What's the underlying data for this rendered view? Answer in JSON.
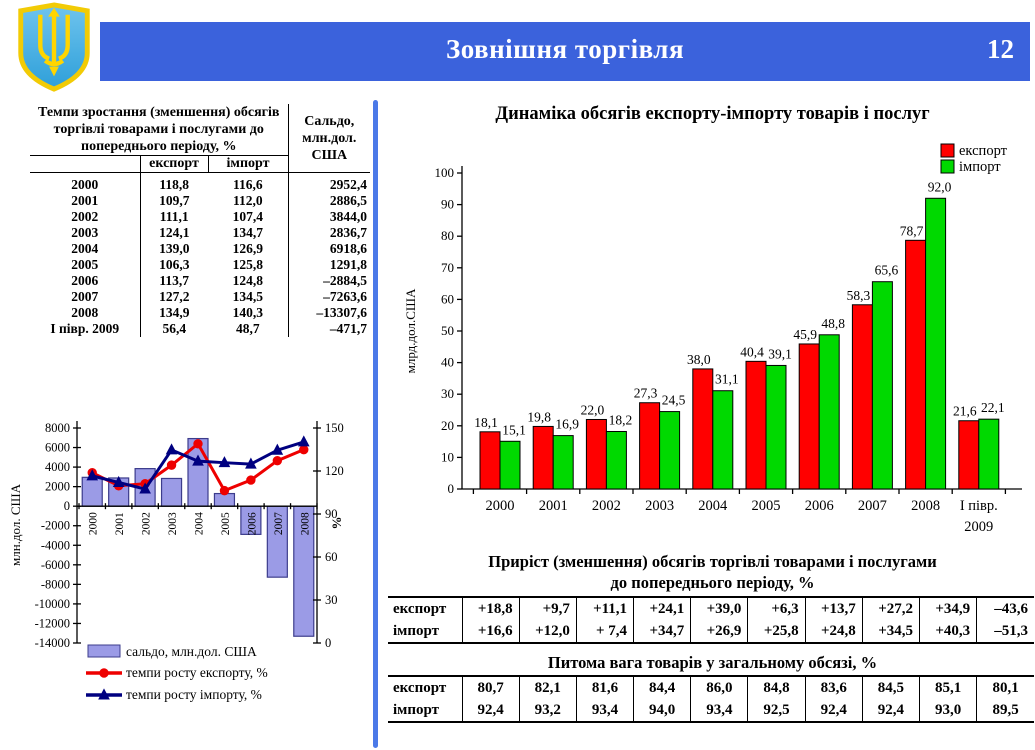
{
  "colors": {
    "header_bar": "#3B62DC",
    "divider": "#4B79E8",
    "saldo_bar_fill": "#9B9BE6",
    "saldo_bar_border": "#3C3C8C",
    "export_line": "#EE0000",
    "import_line": "#000080",
    "export_bar": "#FF0000",
    "import_bar": "#00D900"
  },
  "header": {
    "title": "Зовнішня торгівля",
    "page_number": "12",
    "emblem": "ukraine-coat-of-arms"
  },
  "growth_table": {
    "title": "Темпи зростання (зменшення) обсягів торгівлі товарами і послугами до попереднього періоду, %",
    "saldo_header": "Сальдо, млн.дол. США",
    "columns": {
      "export": "експорт",
      "import": "імпорт"
    },
    "rows": [
      {
        "period": "2000",
        "export": "118,8",
        "import": "116,6",
        "saldo": "2952,4"
      },
      {
        "period": "2001",
        "export": "109,7",
        "import": "112,0",
        "saldo": "2886,5"
      },
      {
        "period": "2002",
        "export": "111,1",
        "import": "107,4",
        "saldo": "3844,0"
      },
      {
        "period": "2003",
        "export": "124,1",
        "import": "134,7",
        "saldo": "2836,7"
      },
      {
        "period": "2004",
        "export": "139,0",
        "import": "126,9",
        "saldo": "6918,6"
      },
      {
        "period": "2005",
        "export": "106,3",
        "import": "125,8",
        "saldo": "1291,8"
      },
      {
        "period": "2006",
        "export": "113,7",
        "import": "124,8",
        "saldo": "–2884,5"
      },
      {
        "period": "2007",
        "export": "127,2",
        "import": "134,5",
        "saldo": "–7263,6"
      },
      {
        "period": "2008",
        "export": "134,9",
        "import": "140,3",
        "saldo": "–13307,6"
      },
      {
        "period": "І півр. 2009",
        "export": "56,4",
        "import": "48,7",
        "saldo": "–471,7"
      }
    ]
  },
  "chart_data": [
    {
      "id": "saldo_combo",
      "type": "bar+line",
      "categories": [
        "2000",
        "2001",
        "2002",
        "2003",
        "2004",
        "2005",
        "2006",
        "2007",
        "2008"
      ],
      "bar_series": {
        "name": "сальдо, млн.дол. США",
        "color": "#9B9BE6",
        "values": [
          2952.4,
          2886.5,
          3844.0,
          2836.7,
          6918.6,
          1291.8,
          -2884.5,
          -7263.6,
          -13307.6
        ]
      },
      "line_series": [
        {
          "name": "темпи росту експорту, %",
          "color": "#EE0000",
          "marker": "circle",
          "values": [
            118.8,
            109.7,
            111.1,
            124.1,
            139.0,
            106.3,
            113.7,
            127.2,
            134.9
          ]
        },
        {
          "name": "темпи росту імпорту, %",
          "color": "#000080",
          "marker": "triangle",
          "values": [
            116.6,
            112.0,
            107.4,
            134.7,
            126.9,
            125.8,
            124.8,
            134.5,
            140.3
          ]
        }
      ],
      "y_left": {
        "label": "млн.дол. США",
        "min": -14000,
        "max": 8000,
        "step": 2000
      },
      "y_right": {
        "label": "%",
        "min": 0,
        "max": 150,
        "step": 30
      },
      "legend_position": "bottom",
      "grid": false
    },
    {
      "id": "export_import_dynamics",
      "type": "bar",
      "title": "Динаміка обсягів експорту-імпорту товарів і послуг",
      "categories": [
        "2000",
        "2001",
        "2002",
        "2003",
        "2004",
        "2005",
        "2006",
        "2007",
        "2008",
        "І півр.\n2009"
      ],
      "series": [
        {
          "name": "експорт",
          "color": "#FF0000",
          "values": [
            18.1,
            19.8,
            22.0,
            27.3,
            38.0,
            40.4,
            45.9,
            58.3,
            78.7,
            21.6
          ],
          "labels": [
            "18,1",
            "19,8",
            "22,0",
            "27,3",
            "38,0",
            "40,4",
            "45,9",
            "58,3",
            "78,7",
            "21,6"
          ]
        },
        {
          "name": "імпорт",
          "color": "#00D900",
          "values": [
            15.1,
            16.9,
            18.2,
            24.5,
            31.1,
            39.1,
            48.8,
            65.6,
            92.0,
            22.1
          ],
          "labels": [
            "15,1",
            "16,9",
            "18,2",
            "24,5",
            "31,1",
            "39,1",
            "48,8",
            "65,6",
            "92,0",
            "22,1"
          ]
        }
      ],
      "ylabel": "млрд.дол.США",
      "ylim": [
        0,
        100
      ],
      "ystep": 10,
      "legend_position": "top-right",
      "grid": false
    }
  ],
  "growth_summary": {
    "title_line1": "Приріст (зменшення) обсягів торгівлі товарами і послугами",
    "title_line2": "до попереднього періоду, %",
    "rows": [
      {
        "label": "експорт",
        "values": [
          "+18,8",
          "+9,7",
          "+11,1",
          "+24,1",
          "+39,0",
          "+6,3",
          "+13,7",
          "+27,2",
          "+34,9",
          "–43,6"
        ]
      },
      {
        "label": "імпорт",
        "values": [
          "+16,6",
          "+12,0",
          "+ 7,4",
          "+34,7",
          "+26,9",
          "+25,8",
          "+24,8",
          "+34,5",
          "+40,3",
          "–51,3"
        ]
      }
    ]
  },
  "share_table": {
    "title": "Питома вага товарів у загальному обсязі, %",
    "rows": [
      {
        "label": "експорт",
        "values": [
          "80,7",
          "82,1",
          "81,6",
          "84,4",
          "86,0",
          "84,8",
          "83,6",
          "84,5",
          "85,1",
          "80,1"
        ]
      },
      {
        "label": "імпорт",
        "values": [
          "92,4",
          "93,2",
          "93,4",
          "94,0",
          "93,4",
          "92,5",
          "92,4",
          "92,4",
          "93,0",
          "89,5"
        ]
      }
    ]
  }
}
